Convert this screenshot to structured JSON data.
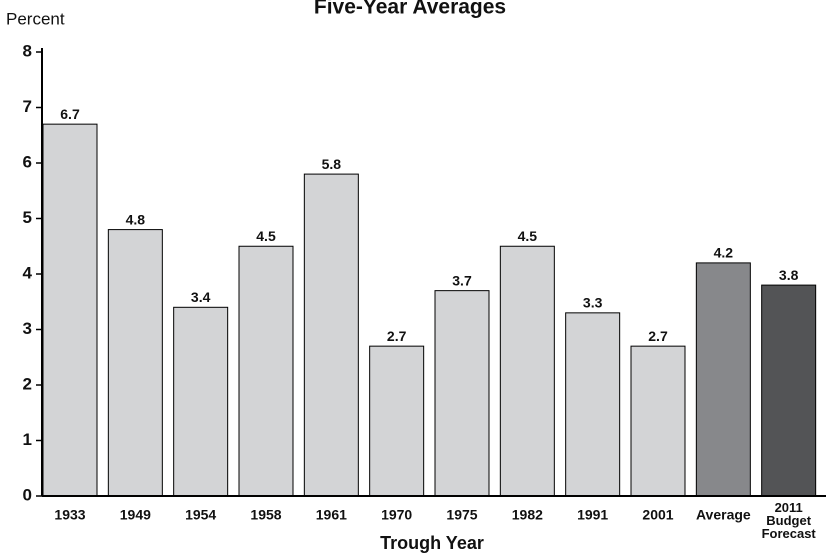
{
  "chart_data": {
    "type": "bar",
    "title": "Five-Year Averages",
    "y_label": "Percent",
    "x_label": "Trough Year",
    "categories": [
      "1933",
      "1949",
      "1954",
      "1958",
      "1961",
      "1970",
      "1975",
      "1982",
      "1991",
      "2001",
      "Average",
      "2011 Budget Forecast"
    ],
    "values": [
      6.7,
      4.8,
      3.4,
      4.5,
      5.8,
      2.7,
      3.7,
      4.5,
      3.3,
      2.7,
      4.2,
      3.8
    ],
    "colors": [
      "#d3d4d6",
      "#d3d4d6",
      "#d3d4d6",
      "#d3d4d6",
      "#d3d4d6",
      "#d3d4d6",
      "#d3d4d6",
      "#d3d4d6",
      "#d3d4d6",
      "#d3d4d6",
      "#87888b",
      "#535456"
    ],
    "ylim": [
      0,
      8
    ],
    "yticks": [
      0,
      1,
      2,
      3,
      4,
      5,
      6,
      7,
      8
    ],
    "grid": false
  }
}
